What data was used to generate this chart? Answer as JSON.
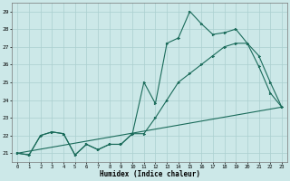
{
  "xlabel": "Humidex (Indice chaleur)",
  "bg_color": "#cce8e8",
  "grid_color": "#aacfcf",
  "line_color": "#1a6b5a",
  "xlim": [
    -0.5,
    23.5
  ],
  "ylim": [
    20.5,
    29.5
  ],
  "xticks": [
    0,
    1,
    2,
    3,
    4,
    5,
    6,
    7,
    8,
    9,
    10,
    11,
    12,
    13,
    14,
    15,
    16,
    17,
    18,
    19,
    20,
    21,
    22,
    23
  ],
  "yticks": [
    21,
    22,
    23,
    24,
    25,
    26,
    27,
    28,
    29
  ],
  "line1_x": [
    0,
    1,
    2,
    3,
    4,
    5,
    6,
    7,
    8,
    9,
    10,
    11,
    12,
    13,
    14,
    15,
    16,
    17,
    18,
    19,
    20,
    21,
    22,
    23
  ],
  "line1_y": [
    21.0,
    20.9,
    22.0,
    22.2,
    22.1,
    20.9,
    21.5,
    21.2,
    21.5,
    21.5,
    22.1,
    25.0,
    23.8,
    27.2,
    27.5,
    29.0,
    28.3,
    27.7,
    27.8,
    28.0,
    27.2,
    25.9,
    24.4,
    23.6
  ],
  "line2_x": [
    0,
    1,
    2,
    3,
    4,
    5,
    6,
    7,
    8,
    9,
    10,
    11,
    12,
    13,
    14,
    15,
    16,
    17,
    18,
    19,
    20,
    21,
    22,
    23
  ],
  "line2_y": [
    21.0,
    20.9,
    22.0,
    22.2,
    22.1,
    20.9,
    21.5,
    21.2,
    21.5,
    21.5,
    22.1,
    22.1,
    23.0,
    24.0,
    25.0,
    25.5,
    26.0,
    26.5,
    27.0,
    27.2,
    27.2,
    26.5,
    25.0,
    23.6
  ],
  "line3_x": [
    0,
    23
  ],
  "line3_y": [
    21.0,
    23.6
  ]
}
